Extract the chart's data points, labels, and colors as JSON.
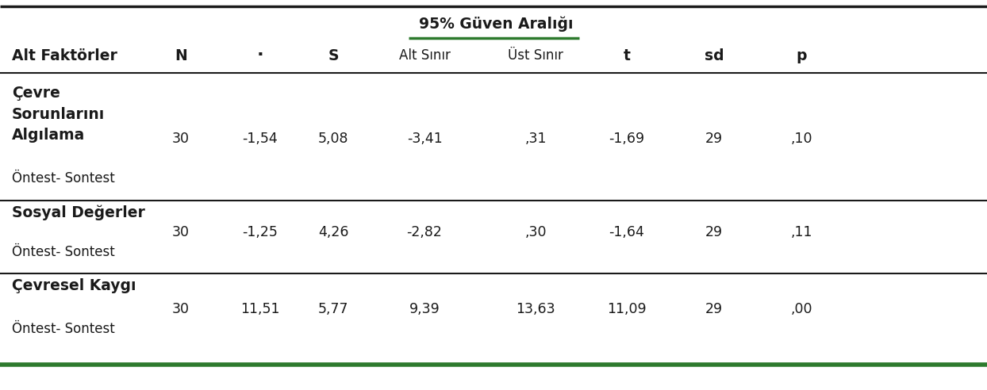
{
  "col_headers_bold": [
    "Alt Faktörler",
    "N",
    "·",
    "S",
    "t",
    "sd",
    "p"
  ],
  "header_95": "95% Güven Aralığı",
  "sub_alt": "Alt Sınır",
  "sub_ust": "Üst Sınır",
  "rows": [
    {
      "label_bold": "Çevre\nSorunlarını\nAlgılama",
      "label_normal": "Öntest- Sontest",
      "N": "30",
      "mean": "-1,54",
      "S": "5,08",
      "alt": "-3,41",
      "ust": ",31",
      "t": "-1,69",
      "sd": "29",
      "p": ",10"
    },
    {
      "label_bold": "Sosyal Değerler",
      "label_normal": "Öntest- Sontest",
      "N": "30",
      "mean": "-1,25",
      "S": "4,26",
      "alt": "-2,82",
      "ust": ",30",
      "t": "-1,64",
      "sd": "29",
      "p": ",11"
    },
    {
      "label_bold": "Çevresel Kaygı",
      "label_normal": "Öntest- Sontest",
      "N": "30",
      "mean": "11,51",
      "S": "5,77",
      "alt": "9,39",
      "ust": "13,63",
      "t": "11,09",
      "sd": "29",
      "p": ",00"
    }
  ],
  "green_color": "#2d7a2d",
  "black": "#1a1a1a",
  "bg_color": "#ffffff",
  "fs_bold": 13.5,
  "fs_data": 12.5,
  "fs_small": 12.0,
  "fig_width": 12.44,
  "fig_height": 4.92,
  "dpi": 100
}
